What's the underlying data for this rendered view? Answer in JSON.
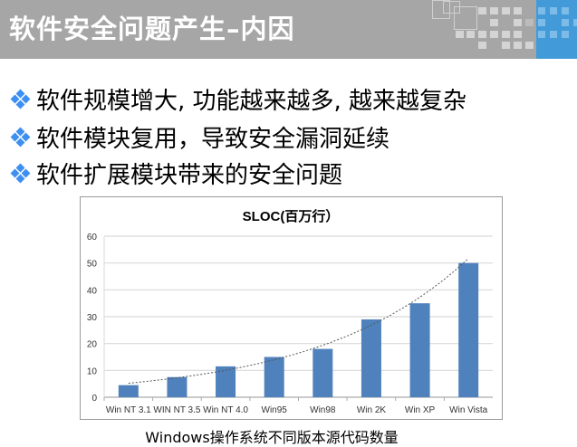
{
  "header": {
    "title": "软件安全问题产生–内因"
  },
  "bullets": [
    "软件规模增大, 功能越来越多, 越来越复杂",
    "软件模块复用，导致安全漏洞延续",
    "软件扩展模块带来的安全问题"
  ],
  "colors": {
    "header_bg": "#a6a6a6",
    "header_accent": "#429bd8",
    "bullet": "#3d8ff2",
    "bar": "#4f81bd"
  },
  "chart_data": {
    "type": "bar",
    "title": "SLOC(百万行）",
    "categories": [
      "Win NT 3.1",
      "WIN NT 3.5",
      "Win NT 4.0",
      "Win95",
      "Win98",
      "Win 2K",
      "Win XP",
      "Win Vista"
    ],
    "values": [
      4.5,
      7.5,
      11.5,
      15,
      18,
      29,
      35,
      50
    ],
    "ylim": [
      0,
      60
    ],
    "yticks": [
      "0",
      "10",
      "20",
      "30",
      "40",
      "50",
      "60"
    ],
    "grid": true,
    "trendline": "exponential, dotted"
  },
  "caption": "Windows操作系统不同版本源代码数量"
}
